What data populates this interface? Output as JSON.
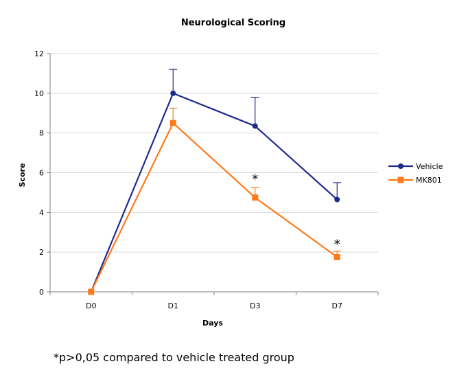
{
  "chart_data": {
    "type": "line",
    "title": "Neurological Scoring",
    "xlabel": "Days",
    "ylabel": "Score",
    "categories": [
      "D0",
      "D1",
      "D3",
      "D7"
    ],
    "ylim": [
      0,
      12
    ],
    "yticks": [
      0,
      2,
      4,
      6,
      8,
      10,
      12
    ],
    "grid": true,
    "legend_position": "right",
    "series": [
      {
        "name": "Vehicle",
        "color": "#1f2a8c",
        "marker": "circle",
        "values": [
          0,
          10.0,
          8.35,
          4.65
        ],
        "error_plus": [
          0,
          1.2,
          1.45,
          0.85
        ]
      },
      {
        "name": "MK801",
        "color": "#ff7a1a",
        "marker": "square",
        "values": [
          0,
          8.5,
          4.75,
          1.75
        ],
        "error_plus": [
          0,
          0.75,
          0.5,
          0.3
        ]
      }
    ],
    "annotations": [
      {
        "text": "*",
        "category": "D3",
        "value": 5.8
      },
      {
        "text": "*",
        "category": "D7",
        "value": 2.5
      }
    ]
  },
  "footnote": "*p>0,05 compared to vehicle treated group"
}
